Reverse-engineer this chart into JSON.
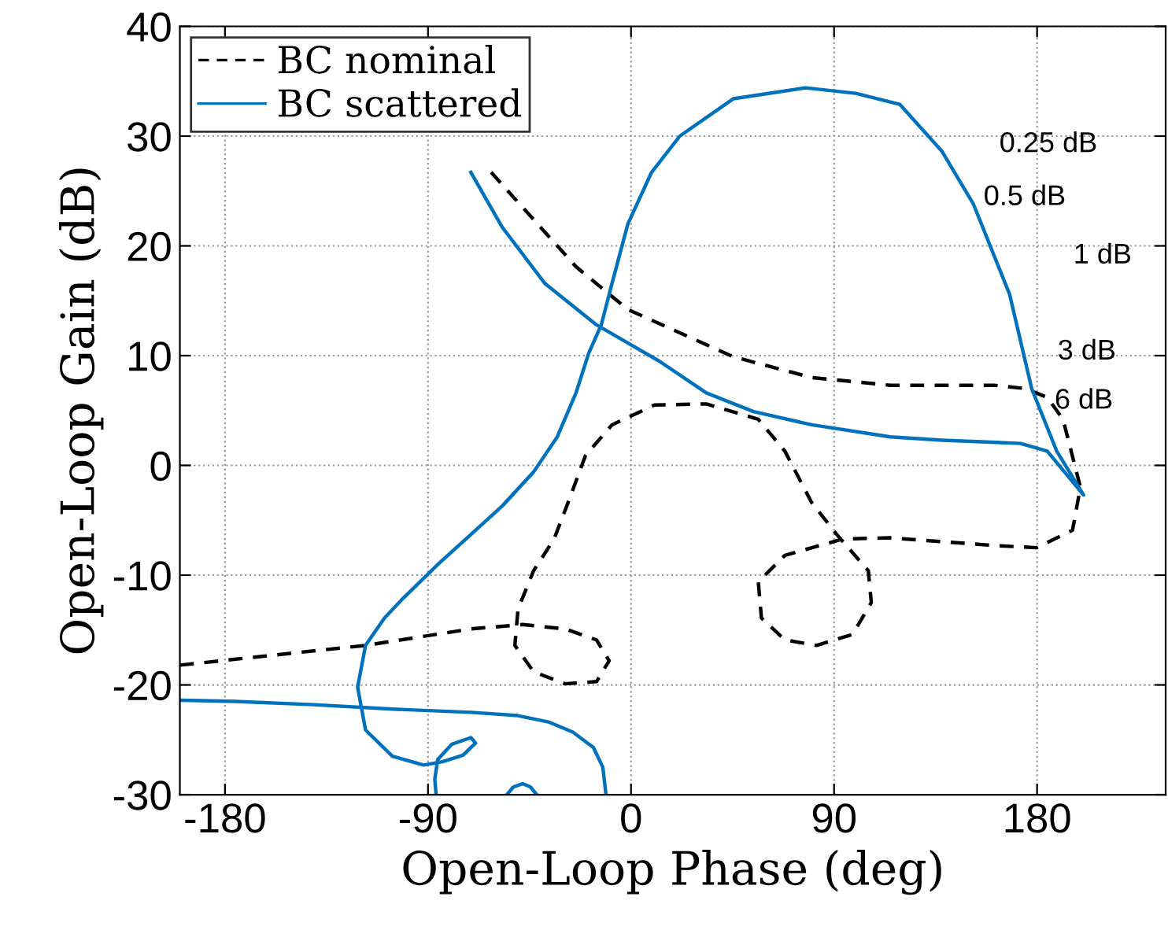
{
  "chart_data": {
    "type": "line",
    "xlabel": "Open-Loop Phase (deg)",
    "ylabel": "Open-Loop Gain (dB)",
    "xlim": [
      -200,
      237
    ],
    "ylim": [
      -30,
      40
    ],
    "xticks": [
      -180,
      -90,
      0,
      90,
      180
    ],
    "yticks": [
      -30,
      -20,
      -10,
      0,
      10,
      20,
      30,
      40
    ],
    "grid": true,
    "legend": "top left",
    "series": [
      {
        "name": "BC nominal",
        "color": "#000000",
        "line_style": "dashed",
        "x": [
          -200,
          -163.6,
          -117.7,
          -71.0,
          -48.1,
          -29.2,
          -15.3,
          -9.7,
          -15.3,
          -29.2,
          -43.2,
          -51.5,
          -50.1,
          -43.2,
          -34.1,
          -27.2,
          -20.2,
          -8.4,
          10.4,
          33.4,
          56.4,
          68.2,
          80.1,
          91.2,
          105.2,
          106.5,
          98.2,
          82.2,
          68.2,
          57.8,
          56.4,
          68.2,
          94.0,
          114.9,
          160.9,
          179.7,
          195.7,
          199.2,
          191.5,
          184.5,
          174.8,
          160.9,
          114.9,
          80.1,
          45.3,
          -1.4,
          -24.4,
          -62.0
        ],
        "values": [
          -18.2,
          -17.4,
          -16.4,
          -14.9,
          -14.5,
          -14.9,
          -15.9,
          -17.8,
          -19.7,
          -19.9,
          -18.8,
          -16.4,
          -13.1,
          -9.6,
          -6.7,
          -3.0,
          0.9,
          3.7,
          5.5,
          5.6,
          4.2,
          1.3,
          -3.4,
          -6.3,
          -9.6,
          -12.5,
          -15.4,
          -16.4,
          -15.9,
          -13.9,
          -10.6,
          -8.2,
          -6.7,
          -6.6,
          -7.3,
          -7.5,
          -5.9,
          -2.0,
          4.2,
          6.2,
          7.0,
          7.3,
          7.3,
          8.0,
          9.9,
          14.2,
          18.1,
          26.7
        ]
      },
      {
        "name": "BC scattered",
        "color": "#0072bd",
        "line_style": "solid",
        "x": [
          -200,
          -175.5,
          -140.7,
          -105.8,
          -71.0,
          -50.1,
          -36.2,
          -25.8,
          -16.7,
          -12.5,
          -11.1,
          null,
          -55.0,
          -52.2,
          -48.0,
          -44.6,
          -41.8,
          null,
          -86.4,
          -87.0,
          -85.7,
          -79.4,
          -71.0,
          -68.9,
          -74.5,
          -83.6,
          -91.9,
          -105.8,
          -117.7,
          -121.2,
          -117.7,
          -109.3,
          -101.0,
          -85.0,
          -71.0,
          -57.1,
          -43.2,
          -32.7,
          -24.4,
          -18.8,
          -13.2,
          -8.4,
          -1.4,
          9.1,
          21.6,
          45.3,
          77.3,
          99.6,
          119.1,
          137.9,
          151.8,
          167.8,
          177.6,
          188.7,
          200.6,
          184.5,
          172.7,
          137.9,
          114.9,
          80.1,
          54.3,
          33.4,
          12.5,
          -15.3,
          -38.3,
          -57.1,
          -71.0
        ],
        "values": [
          -21.4,
          -21.5,
          -21.8,
          -22.2,
          -22.5,
          -22.8,
          -23.4,
          -24.3,
          -25.7,
          -27.5,
          -30.0,
          null,
          -30.0,
          -29.3,
          -29.0,
          -29.3,
          -30.0,
          null,
          -30.0,
          -28.6,
          -26.8,
          -25.4,
          -24.8,
          -25.3,
          -26.4,
          -27.0,
          -27.3,
          -26.5,
          -24.1,
          -20.2,
          -16.4,
          -13.9,
          -12.1,
          -8.9,
          -6.3,
          -3.7,
          -0.6,
          2.6,
          6.6,
          10.2,
          12.8,
          16.6,
          22.0,
          26.7,
          30.0,
          33.4,
          34.4,
          33.9,
          32.9,
          28.6,
          23.8,
          15.6,
          7.0,
          1.3,
          -2.7,
          1.3,
          2.0,
          2.3,
          2.6,
          3.7,
          4.9,
          6.6,
          9.5,
          12.8,
          16.6,
          21.7,
          26.7
        ]
      }
    ],
    "annotations": [
      "0.25 dB",
      "0.5 dB",
      "1 dB",
      "3 dB",
      "6 dB"
    ]
  }
}
